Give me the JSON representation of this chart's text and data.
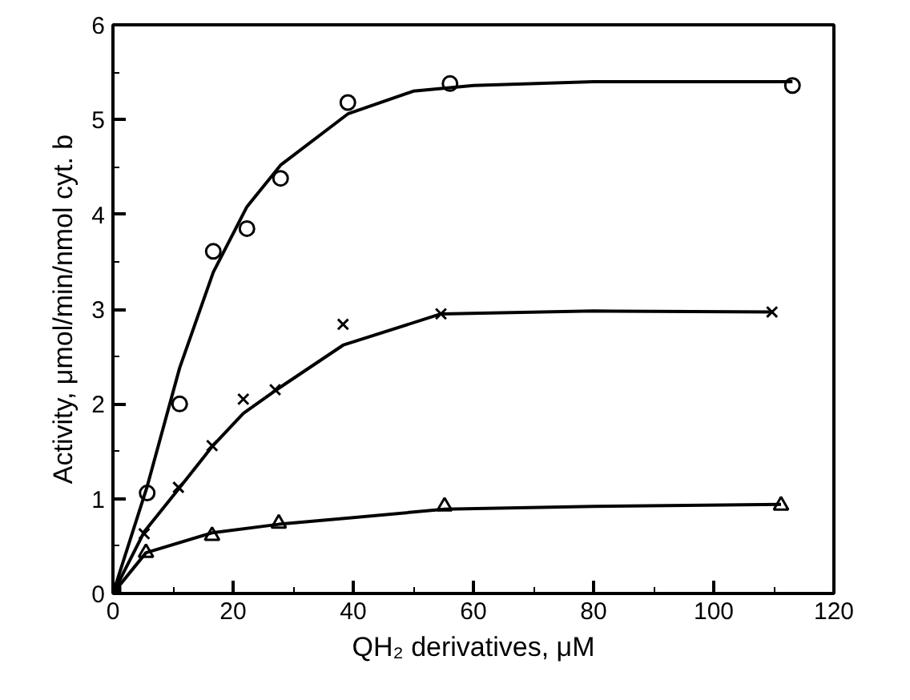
{
  "chart_data": {
    "type": "scatter",
    "xlabel": "QH₂ derivatives, μM",
    "ylabel": "Activity, μmol/min/nmol cyt. b",
    "xlim": [
      0,
      120
    ],
    "ylim": [
      0,
      6
    ],
    "xticks": [
      0,
      20,
      40,
      60,
      80,
      100,
      120
    ],
    "yticks": [
      0,
      1,
      2,
      3,
      4,
      5,
      6
    ],
    "grid": false,
    "series": [
      {
        "marker": "circle",
        "color": "#000000",
        "x": [
          5.7,
          11.1,
          16.7,
          22.3,
          27.9,
          39.1,
          56.1,
          113.1
        ],
        "values": [
          1.06,
          2.0,
          3.61,
          3.85,
          4.38,
          5.18,
          5.38,
          5.36
        ]
      },
      {
        "marker": "cross",
        "color": "#000000",
        "x": [
          5.2,
          10.9,
          16.5,
          21.7,
          27,
          38.3,
          54.6,
          109.7
        ],
        "values": [
          0.63,
          1.12,
          1.56,
          2.05,
          2.15,
          2.84,
          2.95,
          2.97
        ]
      },
      {
        "marker": "triangle",
        "color": "#000000",
        "x": [
          5.5,
          16.5,
          27.6,
          55.2,
          111.2
        ],
        "values": [
          0.43,
          0.61,
          0.74,
          0.92,
          0.93
        ]
      },
      {
        "marker": "square",
        "color": "#000000",
        "x": [
          0
        ],
        "values": [
          0
        ]
      },
      {
        "type": "line",
        "color": "#000000",
        "x": [
          0,
          5.7,
          11.1,
          16.7,
          22.3,
          27.9,
          39.1,
          50,
          60,
          80,
          113.1
        ],
        "values": [
          0,
          1.13,
          2.38,
          3.39,
          4.08,
          4.52,
          5.06,
          5.3,
          5.36,
          5.4,
          5.4
        ]
      },
      {
        "type": "line",
        "color": "#000000",
        "x": [
          0,
          5.2,
          10.9,
          16.5,
          21.7,
          27,
          38.3,
          54.6,
          80,
          109.7
        ],
        "values": [
          0,
          0.65,
          1.1,
          1.55,
          1.9,
          2.14,
          2.62,
          2.95,
          2.98,
          2.97
        ]
      },
      {
        "type": "line",
        "color": "#000000",
        "x": [
          0,
          5.5,
          16.5,
          27.6,
          40,
          55.2,
          80,
          111.2
        ],
        "values": [
          0,
          0.43,
          0.64,
          0.73,
          0.8,
          0.89,
          0.92,
          0.94
        ]
      }
    ]
  }
}
